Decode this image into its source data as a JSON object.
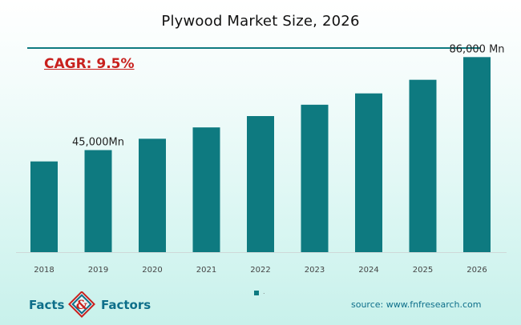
{
  "chart_data": {
    "type": "bar",
    "title": "Plywood Market Size, 2026",
    "annotation": "CAGR: 9.5%",
    "categories": [
      "2018",
      "2019",
      "2020",
      "2021",
      "2022",
      "2023",
      "2024",
      "2025",
      "2026"
    ],
    "values": [
      40000,
      45000,
      50000,
      55000,
      60000,
      65000,
      70000,
      76000,
      86000
    ],
    "data_labels": [
      {
        "category": "2019",
        "text": "45,000Mn"
      },
      {
        "category": "2026",
        "text": "86,000 Mn"
      }
    ],
    "series": [
      {
        "values": [
          40000,
          45000,
          50000,
          55000,
          60000,
          65000,
          70000,
          76000,
          86000
        ],
        "color": "#0e7a80"
      }
    ],
    "legend_text": ".",
    "xlabel": "",
    "ylabel": "",
    "ylim": [
      0,
      90000
    ],
    "grid": false,
    "legend_position": "bottom-center"
  },
  "branding": {
    "logo_left": "Facts",
    "logo_amp": "&",
    "logo_right": "Factors",
    "source": "source: www.fnfresearch.com"
  },
  "colors": {
    "bar": "#0e7a80",
    "cagr": "#c8201d",
    "brand": "#0e6f8a"
  }
}
